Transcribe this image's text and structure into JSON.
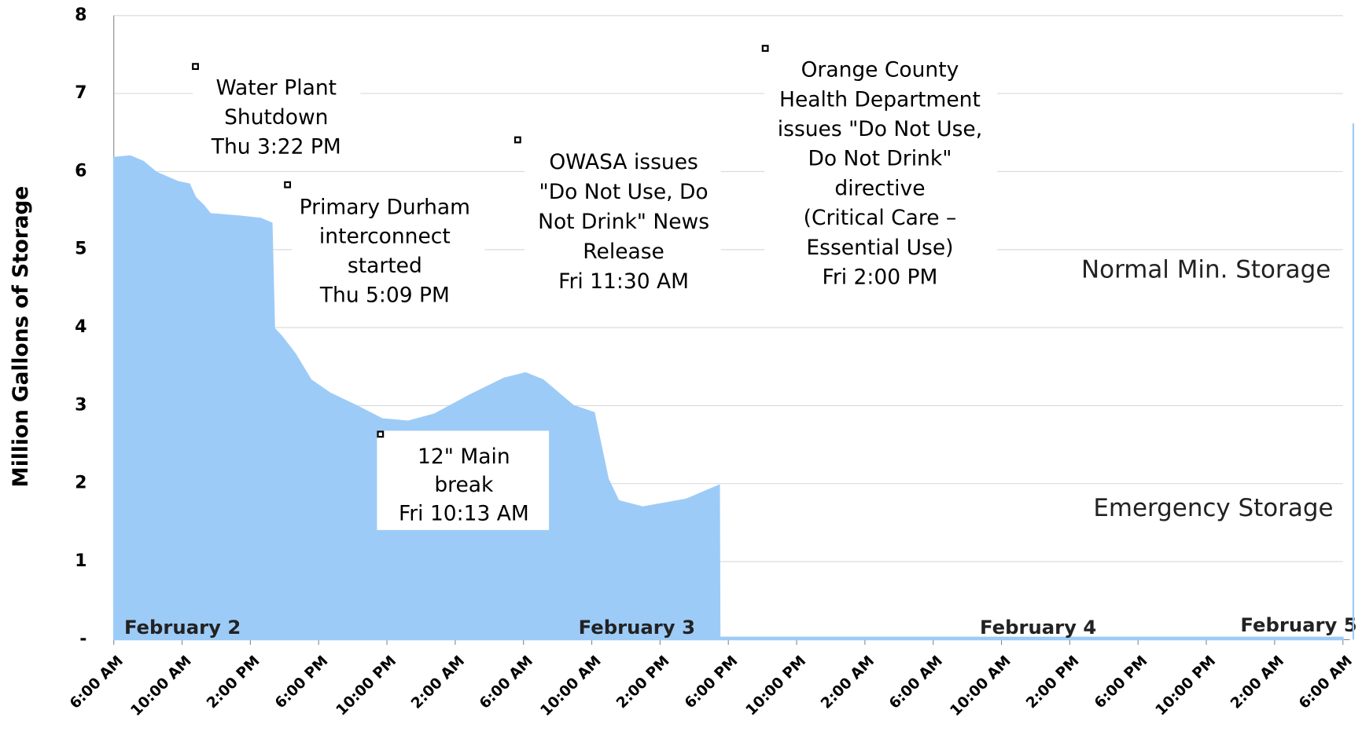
{
  "chart_data": {
    "type": "area",
    "ylabel": "Million Gallons of Storage",
    "color": "#9dcbf7",
    "x": [
      0,
      0.97,
      1.73,
      2.49,
      3.77,
      4.43,
      4.78,
      5.29,
      5.65,
      7.33,
      8.6,
      9.26,
      9.41,
      9.87,
      10.64,
      11.55,
      12.67,
      14.2,
      15.73,
      17.25,
      18.78,
      20.81,
      22.85,
      24.12,
      25.14,
      26.92,
      28.14,
      28.96,
      29.57,
      30.99,
      33.54,
      35.47,
      35.5,
      72
    ],
    "values": [
      6.18,
      6.2,
      6.13,
      5.99,
      5.87,
      5.84,
      5.67,
      5.56,
      5.46,
      5.43,
      5.4,
      5.34,
      3.99,
      3.88,
      3.66,
      3.33,
      3.16,
      3.0,
      2.83,
      2.8,
      2.89,
      3.13,
      3.35,
      3.42,
      3.33,
      3.0,
      2.91,
      2.06,
      1.78,
      1.7,
      1.8,
      1.98,
      0.03,
      0.03
    ],
    "xlim": [
      0,
      72
    ],
    "xticks": [
      {
        "value": 0,
        "label": "6:00 AM"
      },
      {
        "value": 4,
        "label": "10:00 AM"
      },
      {
        "value": 8,
        "label": "2:00 PM"
      },
      {
        "value": 12,
        "label": "6:00 PM"
      },
      {
        "value": 16,
        "label": "10:00 PM"
      },
      {
        "value": 20,
        "label": "2:00 AM"
      },
      {
        "value": 24,
        "label": "6:00 AM"
      },
      {
        "value": 28,
        "label": "10:00 AM"
      },
      {
        "value": 32,
        "label": "2:00 PM"
      },
      {
        "value": 36,
        "label": "6:00 PM"
      },
      {
        "value": 40,
        "label": "10:00 PM"
      },
      {
        "value": 44,
        "label": "2:00 AM"
      },
      {
        "value": 48,
        "label": "6:00 AM"
      },
      {
        "value": 52,
        "label": "10:00 AM"
      },
      {
        "value": 56,
        "label": "2:00 PM"
      },
      {
        "value": 60,
        "label": "6:00 PM"
      },
      {
        "value": 64,
        "label": "10:00 PM"
      },
      {
        "value": 68,
        "label": "2:00 AM"
      },
      {
        "value": 72,
        "label": "6:00 AM"
      }
    ],
    "ylim": [
      0,
      8
    ],
    "yticks": [
      {
        "value": 0,
        "label": "-"
      },
      1,
      2,
      3,
      4,
      5,
      6,
      7,
      8
    ],
    "grid": true,
    "dates": [
      "February 2",
      "February 3",
      "February 4",
      "February 5"
    ],
    "levels": [
      "Normal Min. Storage",
      "Emergency Storage"
    ],
    "annotations": [
      {
        "lines": [
          "Water Plant",
          "Shutdown",
          "Thu 3:22 PM"
        ]
      },
      {
        "lines": [
          "Primary Durham",
          "interconnect",
          "started",
          "Thu 5:09 PM"
        ]
      },
      {
        "lines": [
          "OWASA issues",
          "\"Do Not Use, Do",
          "Not Drink\" News",
          "Release",
          "Fri  11:30 AM"
        ]
      },
      {
        "lines": [
          "Orange County",
          "Health Department",
          "issues \"Do Not Use,",
          "Do Not Drink\"",
          "directive",
          "(Critical Care –",
          "Essential Use)",
          "Fri  2:00 PM"
        ]
      },
      {
        "lines": [
          "12\" Main",
          "break",
          "Fri  10:13 AM"
        ]
      }
    ]
  }
}
